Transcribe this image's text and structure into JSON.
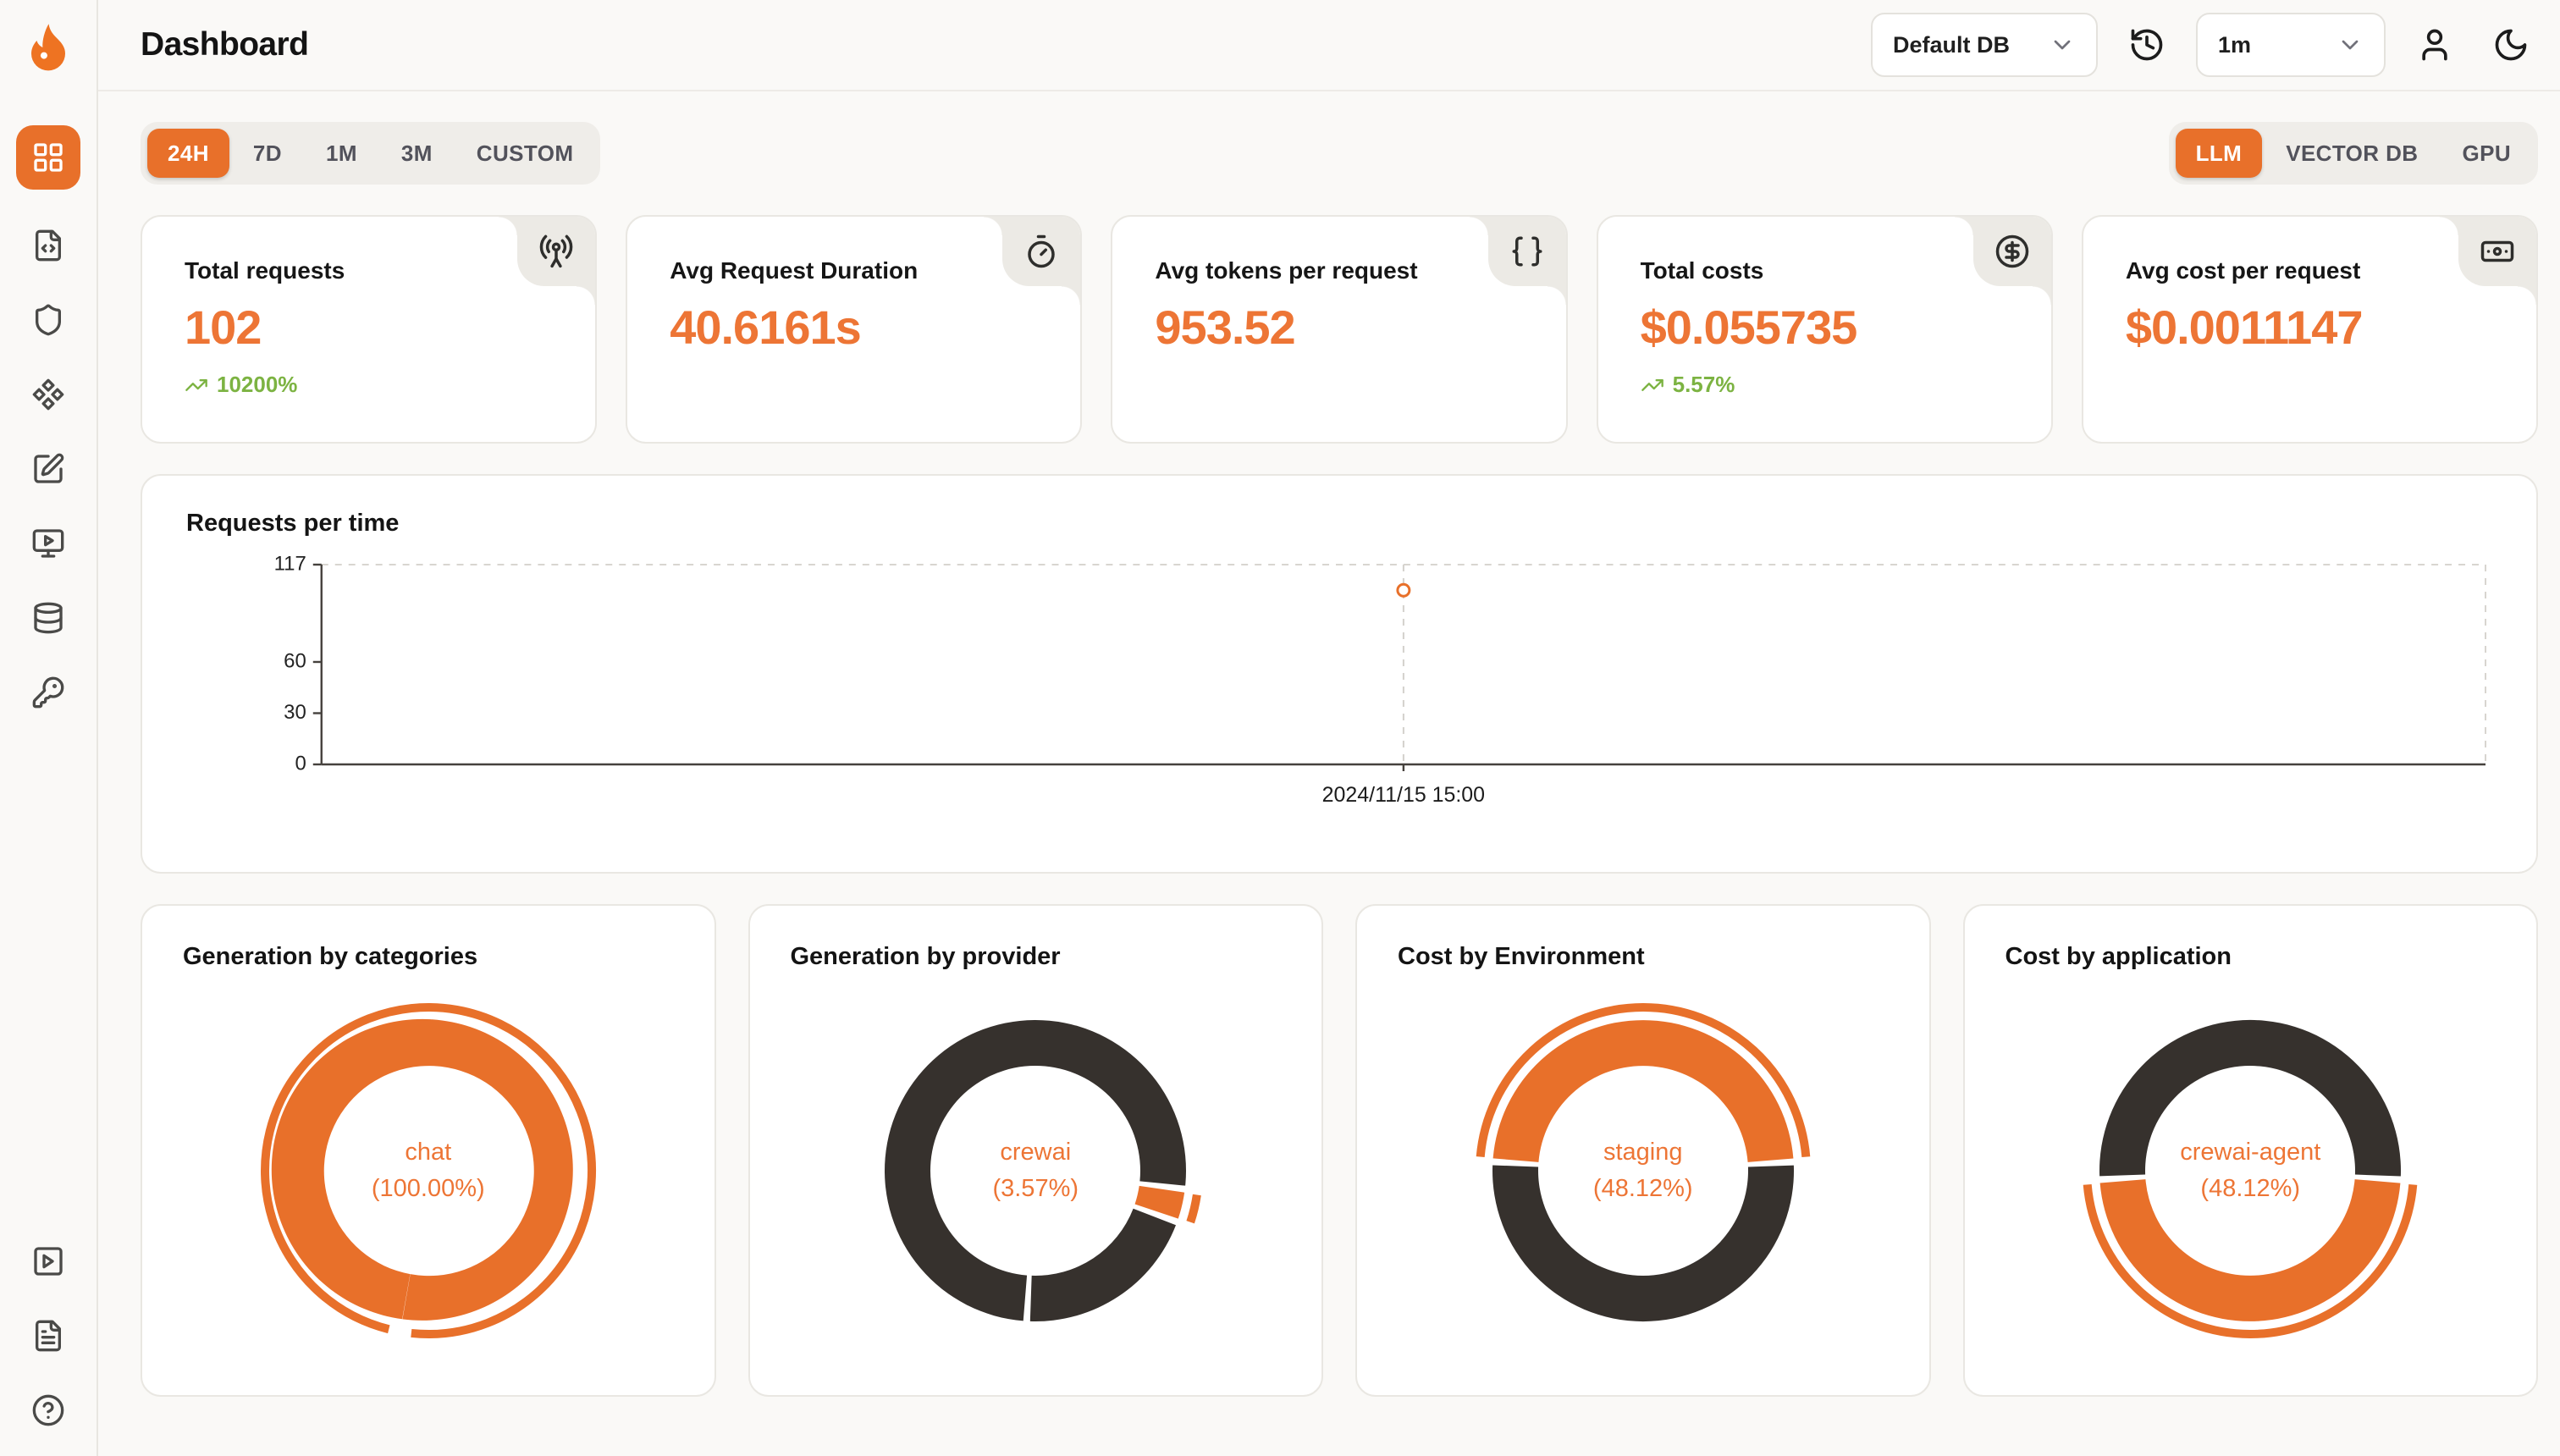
{
  "app": {
    "title": "Dashboard"
  },
  "header": {
    "db_select": {
      "value": "Default DB",
      "chevron_icon": "chevron-down-icon"
    },
    "interval_select": {
      "value": "1m",
      "chevron_icon": "chevron-down-icon"
    },
    "icons": [
      "history-icon",
      "user-icon",
      "moon-icon"
    ]
  },
  "sidebar": {
    "logo_icon": "flame-logo-icon",
    "items": [
      {
        "icon": "layout-grid-icon",
        "active": true
      },
      {
        "icon": "file-code-icon"
      },
      {
        "icon": "shield-icon"
      },
      {
        "icon": "component-icon"
      },
      {
        "icon": "square-pen-icon"
      },
      {
        "icon": "monitor-play-icon"
      },
      {
        "icon": "database-icon"
      },
      {
        "icon": "key-icon"
      }
    ],
    "bottom_items": [
      {
        "icon": "square-play-icon"
      },
      {
        "icon": "file-text-icon"
      },
      {
        "icon": "circle-help-icon"
      }
    ]
  },
  "filters": {
    "time_ranges": [
      "24H",
      "7D",
      "1M",
      "3M",
      "CUSTOM"
    ],
    "active_time_range": "24H",
    "modes": [
      "LLM",
      "VECTOR DB",
      "GPU"
    ],
    "active_mode": "LLM"
  },
  "stats": [
    {
      "label": "Total requests",
      "value": "102",
      "delta": "10200%",
      "trend_icon": "trending-up-icon",
      "icon": "radio-tower-icon"
    },
    {
      "label": "Avg Request Duration",
      "value": "40.6161s",
      "icon": "timer-icon"
    },
    {
      "label": "Avg tokens per request",
      "value": "953.52",
      "icon": "braces-icon"
    },
    {
      "label": "Total costs",
      "value": "$0.055735",
      "delta": "5.57%",
      "trend_icon": "trending-up-icon",
      "icon": "circle-dollar-icon"
    },
    {
      "label": "Avg cost per request",
      "value": "$0.0011147",
      "icon": "banknote-icon"
    }
  ],
  "colors": {
    "accent": "#e8702a",
    "stat_value": "#ed7535",
    "positive_green": "#7cb342",
    "donut_dark": "#36312d"
  },
  "chart_data": [
    {
      "type": "line",
      "title": "Requests per time",
      "x_labels": [
        "2024/11/15 15:00"
      ],
      "points": [
        {
          "x_frac": 0.5,
          "value": 102,
          "label": "2024/11/15 15:00"
        }
      ],
      "yticks": [
        0,
        30,
        60,
        117
      ],
      "ymax": 117,
      "ylim": [
        0,
        117
      ],
      "grid": "dashed-border",
      "point_color": "#e8702a"
    },
    {
      "type": "pie",
      "title": "Generation by categories",
      "center": [
        "chat",
        "(100.00%)"
      ],
      "rotate": 190,
      "slices": [
        {
          "label": "chat",
          "value": 100.0,
          "color": "#e8702a",
          "highlight": true
        }
      ]
    },
    {
      "type": "pie",
      "title": "Generation by provider",
      "center": [
        "crewai",
        "(3.57%)"
      ],
      "rotate": 97,
      "slices": [
        {
          "label": "crewai",
          "value": 3.57,
          "color": "#e8702a",
          "highlight": true
        },
        {
          "value": 20.4,
          "color": "#36312d"
        },
        {
          "value": 76.03,
          "color": "#36312d"
        }
      ]
    },
    {
      "type": "pie",
      "title": "Cost by Environment",
      "center": [
        "staging",
        "(48.12%)"
      ],
      "rotate": 273.4,
      "slices": [
        {
          "label": "staging",
          "value": 48.12,
          "color": "#e8702a",
          "highlight": true
        },
        {
          "value": 51.88,
          "color": "#36312d"
        }
      ]
    },
    {
      "type": "pie",
      "title": "Cost by application",
      "center": [
        "crewai-agent",
        "(48.12%)"
      ],
      "rotate": 93.4,
      "slices": [
        {
          "label": "crewai-agent",
          "value": 48.12,
          "color": "#e8702a",
          "highlight": true
        },
        {
          "value": 51.88,
          "color": "#36312d"
        }
      ]
    }
  ]
}
